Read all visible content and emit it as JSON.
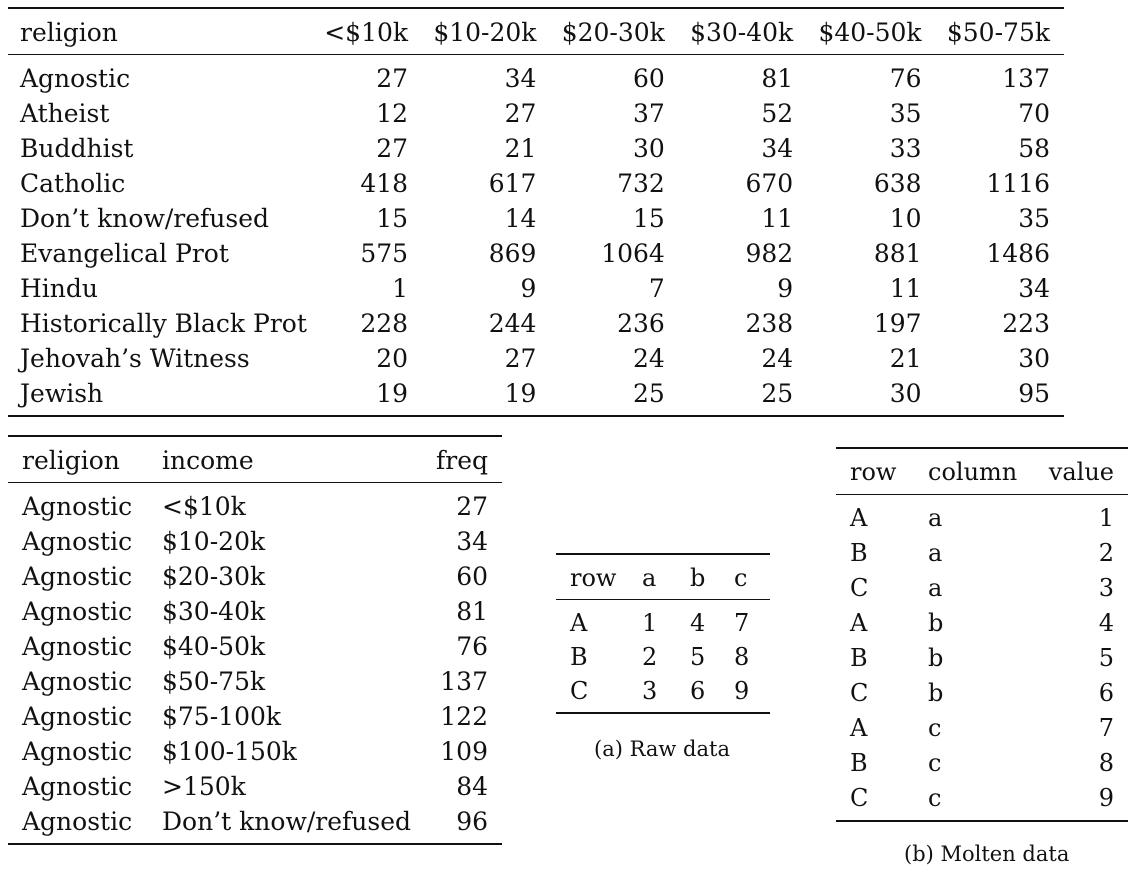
{
  "income_table": {
    "headers": [
      "religion",
      "<$10k",
      "$10-20k",
      "$20-30k",
      "$30-40k",
      "$40-50k",
      "$50-75k"
    ],
    "rows": [
      [
        "Agnostic",
        "27",
        "34",
        "60",
        "81",
        "76",
        "137"
      ],
      [
        "Atheist",
        "12",
        "27",
        "37",
        "52",
        "35",
        "70"
      ],
      [
        "Buddhist",
        "27",
        "21",
        "30",
        "34",
        "33",
        "58"
      ],
      [
        "Catholic",
        "418",
        "617",
        "732",
        "670",
        "638",
        "1116"
      ],
      [
        "Don’t know/refused",
        "15",
        "14",
        "15",
        "11",
        "10",
        "35"
      ],
      [
        "Evangelical Prot",
        "575",
        "869",
        "1064",
        "982",
        "881",
        "1486"
      ],
      [
        "Hindu",
        "1",
        "9",
        "7",
        "9",
        "11",
        "34"
      ],
      [
        "Historically Black Prot",
        "228",
        "244",
        "236",
        "238",
        "197",
        "223"
      ],
      [
        "Jehovah’s Witness",
        "20",
        "27",
        "24",
        "24",
        "21",
        "30"
      ],
      [
        "Jewish",
        "19",
        "19",
        "25",
        "25",
        "30",
        "95"
      ]
    ]
  },
  "melted_table": {
    "headers": [
      "religion",
      "income",
      "freq"
    ],
    "rows": [
      [
        "Agnostic",
        "<$10k",
        "27"
      ],
      [
        "Agnostic",
        "$10-20k",
        "34"
      ],
      [
        "Agnostic",
        "$20-30k",
        "60"
      ],
      [
        "Agnostic",
        "$30-40k",
        "81"
      ],
      [
        "Agnostic",
        "$40-50k",
        "76"
      ],
      [
        "Agnostic",
        "$50-75k",
        "137"
      ],
      [
        "Agnostic",
        "$75-100k",
        "122"
      ],
      [
        "Agnostic",
        "$100-150k",
        "109"
      ],
      [
        "Agnostic",
        ">150k",
        "84"
      ],
      [
        "Agnostic",
        "Don’t know/refused",
        "96"
      ]
    ]
  },
  "raw_table": {
    "headers": [
      "row",
      "a",
      "b",
      "c"
    ],
    "rows": [
      [
        "A",
        "1",
        "4",
        "7"
      ],
      [
        "B",
        "2",
        "5",
        "8"
      ],
      [
        "C",
        "3",
        "6",
        "9"
      ]
    ],
    "caption": "(a) Raw data"
  },
  "molten_table": {
    "headers": [
      "row",
      "column",
      "value"
    ],
    "rows": [
      [
        "A",
        "a",
        "1"
      ],
      [
        "B",
        "a",
        "2"
      ],
      [
        "C",
        "a",
        "3"
      ],
      [
        "A",
        "b",
        "4"
      ],
      [
        "B",
        "b",
        "5"
      ],
      [
        "C",
        "b",
        "6"
      ],
      [
        "A",
        "c",
        "7"
      ],
      [
        "B",
        "c",
        "8"
      ],
      [
        "C",
        "c",
        "9"
      ]
    ],
    "caption": "(b) Molten data"
  }
}
